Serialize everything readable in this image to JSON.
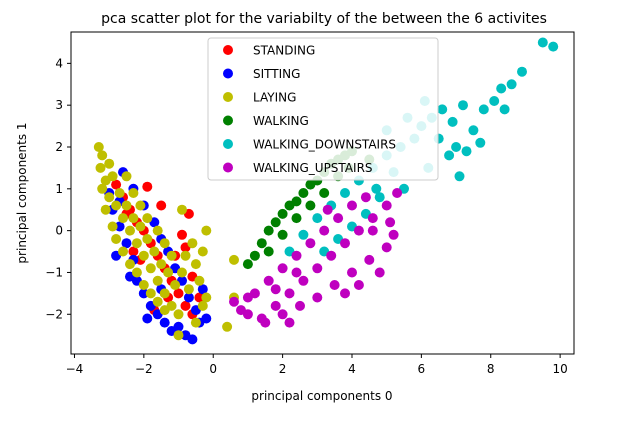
{
  "chart_data": {
    "type": "scatter",
    "title": "pca scatter plot for the variabilty of the between the 6 activites",
    "xlabel": "principal components 0",
    "ylabel": "principal components 1",
    "xlim": [
      -4.1,
      10.4
    ],
    "ylim": [
      -2.95,
      4.75
    ],
    "xticks": [
      -4,
      -2,
      0,
      2,
      4,
      6,
      8,
      10
    ],
    "yticks": [
      -2,
      -1,
      0,
      1,
      2,
      3,
      4
    ],
    "grid": false,
    "legend_position": "upper-center",
    "series": [
      {
        "name": "STANDING",
        "color": "#ff0000",
        "points": [
          [
            -2.8,
            1.1
          ],
          [
            -2.6,
            0.8
          ],
          [
            -2.4,
            0.5
          ],
          [
            -2.2,
            0.2
          ],
          [
            -2.0,
            0.0
          ],
          [
            -1.8,
            -0.3
          ],
          [
            -1.6,
            -0.6
          ],
          [
            -1.4,
            -0.9
          ],
          [
            -1.2,
            -1.2
          ],
          [
            -1.0,
            -1.5
          ],
          [
            -0.8,
            -1.8
          ],
          [
            -0.6,
            -2.0
          ],
          [
            -0.7,
            0.4
          ],
          [
            -0.9,
            -0.1
          ],
          [
            -1.9,
            1.05
          ],
          [
            -1.5,
            0.6
          ],
          [
            -2.1,
            -0.7
          ],
          [
            -1.7,
            -1.9
          ],
          [
            -1.3,
            -1.6
          ],
          [
            -0.6,
            -1.1
          ],
          [
            -0.4,
            -1.6
          ],
          [
            -2.3,
            -0.5
          ],
          [
            -1.1,
            -0.6
          ],
          [
            -2.5,
            0.4
          ],
          [
            -0.8,
            -0.4
          ]
        ]
      },
      {
        "name": "SITTING",
        "color": "#0000ff",
        "points": [
          [
            -3.0,
            0.9
          ],
          [
            -2.9,
            0.5
          ],
          [
            -2.7,
            0.1
          ],
          [
            -2.5,
            -0.3
          ],
          [
            -2.3,
            -0.7
          ],
          [
            -2.2,
            -1.2
          ],
          [
            -2.0,
            -1.5
          ],
          [
            -1.8,
            -1.8
          ],
          [
            -1.6,
            -2.0
          ],
          [
            -1.4,
            -2.2
          ],
          [
            -1.2,
            -2.4
          ],
          [
            -1.0,
            -2.3
          ],
          [
            -0.8,
            -2.5
          ],
          [
            -0.6,
            -2.6
          ],
          [
            -0.4,
            -2.2
          ],
          [
            -0.2,
            -2.1
          ],
          [
            -2.6,
            1.4
          ],
          [
            -2.3,
            1.0
          ],
          [
            -2.0,
            0.6
          ],
          [
            -1.7,
            0.2
          ],
          [
            -1.5,
            -0.2
          ],
          [
            -1.3,
            -0.5
          ],
          [
            -1.1,
            -0.9
          ],
          [
            -0.9,
            -1.2
          ],
          [
            -0.7,
            -1.6
          ],
          [
            -0.5,
            -1.9
          ],
          [
            -2.8,
            -0.6
          ],
          [
            -2.4,
            -1.1
          ],
          [
            -1.9,
            -2.1
          ],
          [
            -1.5,
            -1.4
          ],
          [
            -0.3,
            -1.4
          ],
          [
            -2.7,
            0.7
          ]
        ]
      },
      {
        "name": "LAYING",
        "color": "#bfbf00",
        "points": [
          [
            -3.3,
            2.0
          ],
          [
            -3.2,
            1.8
          ],
          [
            -3.25,
            1.5
          ],
          [
            -3.1,
            1.2
          ],
          [
            -3.0,
            1.6
          ],
          [
            -2.9,
            1.3
          ],
          [
            -3.2,
            1.0
          ],
          [
            -3.0,
            0.8
          ],
          [
            -2.8,
            0.6
          ],
          [
            -2.7,
            0.9
          ],
          [
            -2.6,
            0.3
          ],
          [
            -2.5,
            0.6
          ],
          [
            -2.4,
            0.0
          ],
          [
            -2.3,
            0.3
          ],
          [
            -2.2,
            -0.3
          ],
          [
            -2.1,
            0.1
          ],
          [
            -2.0,
            -0.6
          ],
          [
            -1.9,
            -0.2
          ],
          [
            -1.8,
            -0.9
          ],
          [
            -1.7,
            -0.5
          ],
          [
            -1.6,
            -1.2
          ],
          [
            -1.5,
            -0.8
          ],
          [
            -1.4,
            -1.5
          ],
          [
            -1.3,
            -1.0
          ],
          [
            -1.2,
            -1.8
          ],
          [
            -1.1,
            -1.3
          ],
          [
            -1.0,
            -2.0
          ],
          [
            -0.9,
            -1.0
          ],
          [
            -0.8,
            -0.6
          ],
          [
            -0.7,
            -1.4
          ],
          [
            -0.6,
            -0.3
          ],
          [
            -0.5,
            -0.8
          ],
          [
            -0.4,
            -1.2
          ],
          [
            -0.3,
            -0.5
          ],
          [
            -0.2,
            -1.6
          ],
          [
            -0.3,
            -1.8
          ],
          [
            -3.1,
            0.5
          ],
          [
            -2.9,
            0.1
          ],
          [
            -2.8,
            -0.2
          ],
          [
            -2.6,
            -0.5
          ],
          [
            -2.4,
            -0.8
          ],
          [
            -2.2,
            -1.0
          ],
          [
            -2.0,
            -1.3
          ],
          [
            -1.8,
            -1.5
          ],
          [
            -1.6,
            -1.7
          ],
          [
            -1.4,
            -1.9
          ],
          [
            -2.5,
            1.3
          ],
          [
            -2.3,
            0.9
          ],
          [
            -2.1,
            0.6
          ],
          [
            -1.9,
            0.3
          ],
          [
            -1.6,
            0.0
          ],
          [
            -1.4,
            -0.3
          ],
          [
            -1.2,
            -0.6
          ],
          [
            0.6,
            -0.7
          ],
          [
            0.4,
            -2.3
          ],
          [
            0.6,
            -1.6
          ],
          [
            -0.2,
            0.0
          ],
          [
            -0.9,
            0.5
          ],
          [
            -1.0,
            -2.5
          ],
          [
            -0.5,
            -2.2
          ]
        ]
      },
      {
        "name": "WALKING",
        "color": "#008000",
        "points": [
          [
            1.0,
            -0.8
          ],
          [
            1.2,
            -0.6
          ],
          [
            1.4,
            -0.3
          ],
          [
            1.6,
            0.0
          ],
          [
            1.8,
            0.2
          ],
          [
            2.0,
            0.4
          ],
          [
            2.2,
            0.6
          ],
          [
            2.4,
            0.7
          ],
          [
            2.6,
            0.9
          ],
          [
            2.8,
            1.1
          ],
          [
            3.0,
            1.2
          ],
          [
            3.2,
            1.4
          ],
          [
            3.4,
            1.6
          ],
          [
            3.6,
            1.7
          ],
          [
            3.8,
            1.8
          ],
          [
            4.0,
            1.9
          ],
          [
            1.6,
            -0.5
          ],
          [
            2.0,
            -0.1
          ],
          [
            2.4,
            0.3
          ],
          [
            2.8,
            0.6
          ],
          [
            3.2,
            0.9
          ],
          [
            3.6,
            1.3
          ],
          [
            3.9,
            1.5
          ],
          [
            4.5,
            1.7
          ]
        ]
      },
      {
        "name": "WALKING_DOWNSTAIRS",
        "color": "#00bfbf",
        "points": [
          [
            2.2,
            -0.5
          ],
          [
            2.6,
            -0.1
          ],
          [
            3.0,
            0.3
          ],
          [
            3.4,
            0.6
          ],
          [
            3.8,
            0.9
          ],
          [
            4.2,
            1.2
          ],
          [
            4.6,
            1.5
          ],
          [
            5.0,
            1.8
          ],
          [
            5.4,
            2.0
          ],
          [
            5.8,
            2.2
          ],
          [
            6.0,
            2.5
          ],
          [
            6.3,
            2.7
          ],
          [
            6.6,
            2.9
          ],
          [
            6.9,
            2.6
          ],
          [
            7.2,
            3.0
          ],
          [
            7.5,
            2.4
          ],
          [
            7.8,
            2.9
          ],
          [
            8.1,
            3.1
          ],
          [
            8.3,
            3.4
          ],
          [
            8.6,
            3.5
          ],
          [
            8.9,
            3.8
          ],
          [
            9.5,
            4.5
          ],
          [
            9.8,
            4.4
          ],
          [
            6.8,
            1.8
          ],
          [
            7.0,
            2.0
          ],
          [
            5.5,
            1.0
          ],
          [
            5.2,
            1.4
          ],
          [
            4.8,
            0.8
          ],
          [
            4.4,
            0.4
          ],
          [
            4.0,
            0.1
          ],
          [
            3.6,
            -0.2
          ],
          [
            3.2,
            -0.5
          ],
          [
            6.2,
            1.5
          ],
          [
            7.3,
            1.9
          ],
          [
            6.5,
            2.2
          ],
          [
            5.0,
            2.4
          ],
          [
            4.7,
            1.0
          ],
          [
            7.7,
            2.1
          ],
          [
            7.1,
            1.3
          ],
          [
            6.1,
            3.1
          ],
          [
            5.6,
            2.7
          ],
          [
            8.4,
            2.9
          ]
        ]
      },
      {
        "name": "WALKING_UPSTAIRS",
        "color": "#bf00bf",
        "points": [
          [
            0.6,
            -1.7
          ],
          [
            1.0,
            -2.0
          ],
          [
            1.4,
            -2.1
          ],
          [
            1.8,
            -1.8
          ],
          [
            2.2,
            -1.5
          ],
          [
            2.6,
            -1.2
          ],
          [
            3.0,
            -0.9
          ],
          [
            3.4,
            -0.6
          ],
          [
            3.8,
            -0.3
          ],
          [
            4.2,
            0.0
          ],
          [
            4.6,
            0.3
          ],
          [
            5.0,
            0.6
          ],
          [
            5.3,
            0.9
          ],
          [
            1.2,
            -1.5
          ],
          [
            1.6,
            -1.2
          ],
          [
            2.0,
            -0.9
          ],
          [
            2.4,
            -0.6
          ],
          [
            2.8,
            -0.3
          ],
          [
            3.2,
            0.0
          ],
          [
            3.6,
            0.3
          ],
          [
            4.0,
            0.6
          ],
          [
            4.4,
            0.8
          ],
          [
            1.5,
            -2.2
          ],
          [
            2.0,
            -2.0
          ],
          [
            2.5,
            -1.8
          ],
          [
            3.0,
            -1.6
          ],
          [
            3.5,
            -1.3
          ],
          [
            4.0,
            -1.0
          ],
          [
            4.5,
            -0.7
          ],
          [
            5.0,
            -0.4
          ],
          [
            5.2,
            -0.1
          ],
          [
            4.8,
            -1.0
          ],
          [
            4.2,
            -1.3
          ],
          [
            3.8,
            -1.5
          ],
          [
            2.2,
            -2.2
          ],
          [
            1.0,
            -1.6
          ],
          [
            0.8,
            -1.9
          ],
          [
            3.3,
            0.5
          ],
          [
            4.6,
            0.0
          ],
          [
            5.1,
            0.2
          ],
          [
            1.8,
            -1.4
          ],
          [
            2.4,
            -1.0
          ]
        ]
      }
    ]
  }
}
